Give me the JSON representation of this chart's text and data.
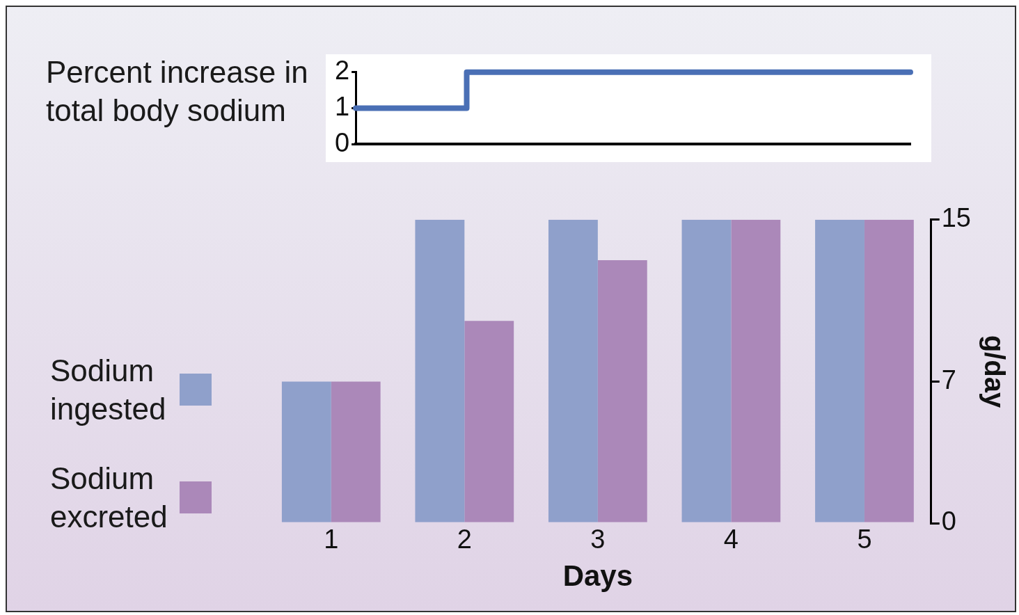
{
  "chart_data": [
    {
      "type": "step",
      "ylabel": "Percent increase in total body sodium",
      "categories": [
        null,
        null,
        null,
        null,
        null,
        null,
        null,
        null,
        null,
        null,
        null
      ],
      "series": [
        {
          "color": "#4a6fb5",
          "values": [
            1,
            1,
            1,
            2,
            2,
            2,
            2,
            2,
            2,
            2,
            2
          ]
        }
      ],
      "ylim": [
        0,
        2
      ],
      "yticks": [
        0,
        1,
        2
      ],
      "tick_labels": "y",
      "grid": false,
      "marker": "none"
    },
    {
      "type": "bar",
      "xlabel": "Days",
      "ylabel": "g/day",
      "categories": [
        "1",
        "2",
        "3",
        "4",
        "5"
      ],
      "series": [
        {
          "name": "Sodium ingested",
          "color": "#8fa0cb",
          "values": [
            7,
            15,
            15,
            15,
            15
          ]
        },
        {
          "name": "Sodium excreted",
          "color": "#ab88b9",
          "values": [
            7,
            10,
            13,
            15,
            15
          ]
        }
      ],
      "ylim": [
        0,
        15
      ],
      "yticks": [
        0,
        7,
        15
      ],
      "legend": "left",
      "grid": false
    }
  ]
}
